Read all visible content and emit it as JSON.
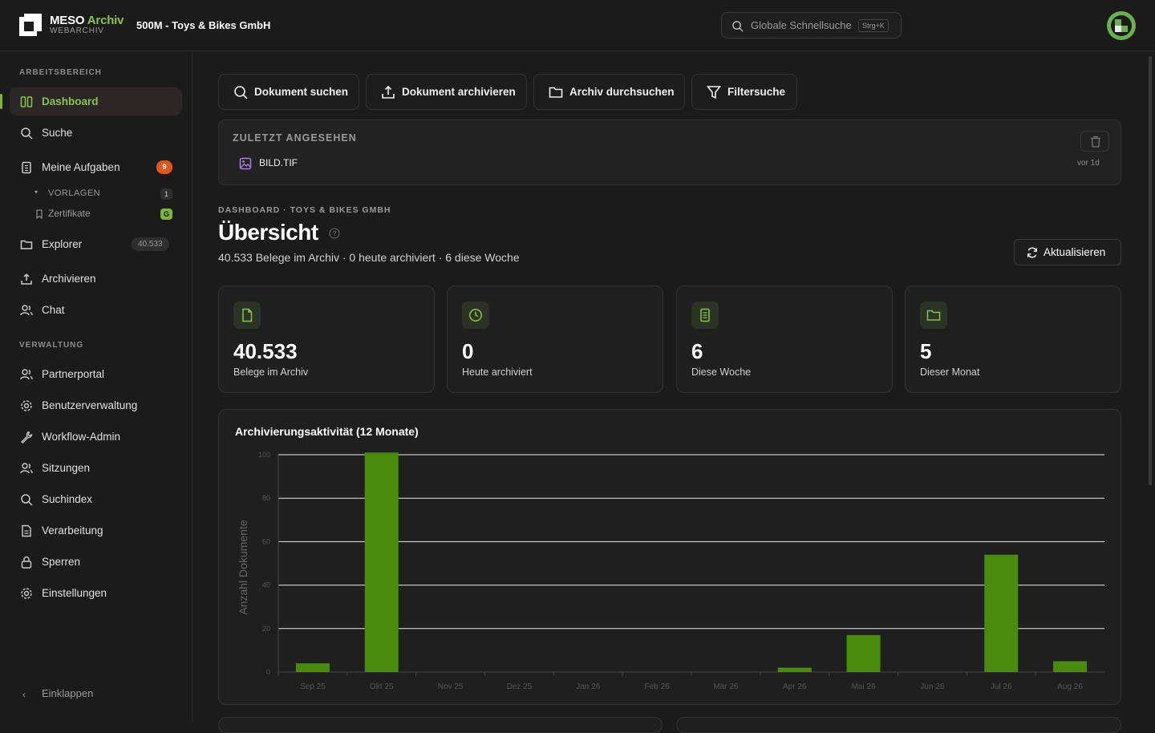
{
  "app": {
    "name_main": "MESO",
    "name_accent": "Archiv",
    "subtitle": "WEBARCHIV",
    "org": "500M - Toys & Bikes GmbH"
  },
  "search": {
    "placeholder": "Globale Schnellsuche",
    "shortcut": "Strg+K"
  },
  "sidebar": {
    "section_work": "ARBEITSBEREICH",
    "section_admin": "VERWALTUNG",
    "items": [
      {
        "label": "Dashboard",
        "icon": "columns-icon",
        "active": true
      },
      {
        "label": "Suche",
        "icon": "search-icon"
      },
      {
        "label": "Meine Aufgaben",
        "icon": "document-icon",
        "badge": "9"
      },
      {
        "label": "Explorer",
        "icon": "folder-icon",
        "badge": "40.533"
      },
      {
        "label": "Archivieren",
        "icon": "upload-icon"
      },
      {
        "label": "Chat",
        "icon": "users-icon"
      }
    ],
    "sub": {
      "group_label": "VORLAGEN",
      "group_count": "1",
      "item_label": "Zertifikate",
      "item_badge": "G"
    },
    "admin_items": [
      {
        "label": "Partnerportal",
        "icon": "users-icon"
      },
      {
        "label": "Benutzerverwaltung",
        "icon": "gear-icon"
      },
      {
        "label": "Workflow-Admin",
        "icon": "wrench-icon"
      },
      {
        "label": "Sitzungen",
        "icon": "users-icon"
      },
      {
        "label": "Suchindex",
        "icon": "search-icon"
      },
      {
        "label": "Verarbeitung",
        "icon": "document-icon"
      },
      {
        "label": "Sperren",
        "icon": "lock-icon"
      },
      {
        "label": "Einstellungen",
        "icon": "gear-icon"
      }
    ],
    "collapse_label": "Einklappen"
  },
  "actions": [
    {
      "label": "Dokument suchen",
      "icon": "search-icon"
    },
    {
      "label": "Dokument archivieren",
      "icon": "upload-icon"
    },
    {
      "label": "Archiv durchsuchen",
      "icon": "folder-icon"
    },
    {
      "label": "Filtersuche",
      "icon": "filter-icon"
    }
  ],
  "recent": {
    "title": "ZULETZT ANGESEHEN",
    "file_name": "BILD.TIF",
    "file_time": "vor 1d"
  },
  "header": {
    "breadcrumb": "DASHBOARD · TOYS & BIKES GMBH",
    "title": "Übersicht",
    "subtitle": "40.533 Belege im Archiv · 0 heute archiviert · 6 diese Woche",
    "refresh_label": "Aktualisieren"
  },
  "stats": [
    {
      "value": "40.533",
      "label": "Belege im Archiv",
      "icon": "file-icon"
    },
    {
      "value": "0",
      "label": "Heute archiviert",
      "icon": "clock-icon"
    },
    {
      "value": "6",
      "label": "Diese Woche",
      "icon": "document-icon"
    },
    {
      "value": "5",
      "label": "Dieser Monat",
      "icon": "folder-icon"
    }
  ],
  "colors": {
    "accent": "#8bc34a",
    "bar": "#4a8a0c",
    "badge_red": "#e0561f"
  },
  "chart_data": {
    "type": "bar",
    "title": "Archivierungsaktivität (12 Monate)",
    "xlabel": "",
    "ylabel": "Anzahl Dokumente",
    "categories": [
      "Sep 25",
      "Okt 25",
      "Nov 25",
      "Dez 25",
      "Jan 26",
      "Feb 26",
      "Mär 26",
      "Apr 26",
      "Mai 26",
      "Jun 26",
      "Jul 26",
      "Aug 26"
    ],
    "values": [
      4,
      101,
      0,
      0,
      0,
      0,
      0,
      2,
      17,
      0,
      54,
      5
    ],
    "ylim": [
      0,
      100
    ],
    "yticks": [
      0,
      20,
      40,
      60,
      80,
      100
    ],
    "grid": true
  }
}
